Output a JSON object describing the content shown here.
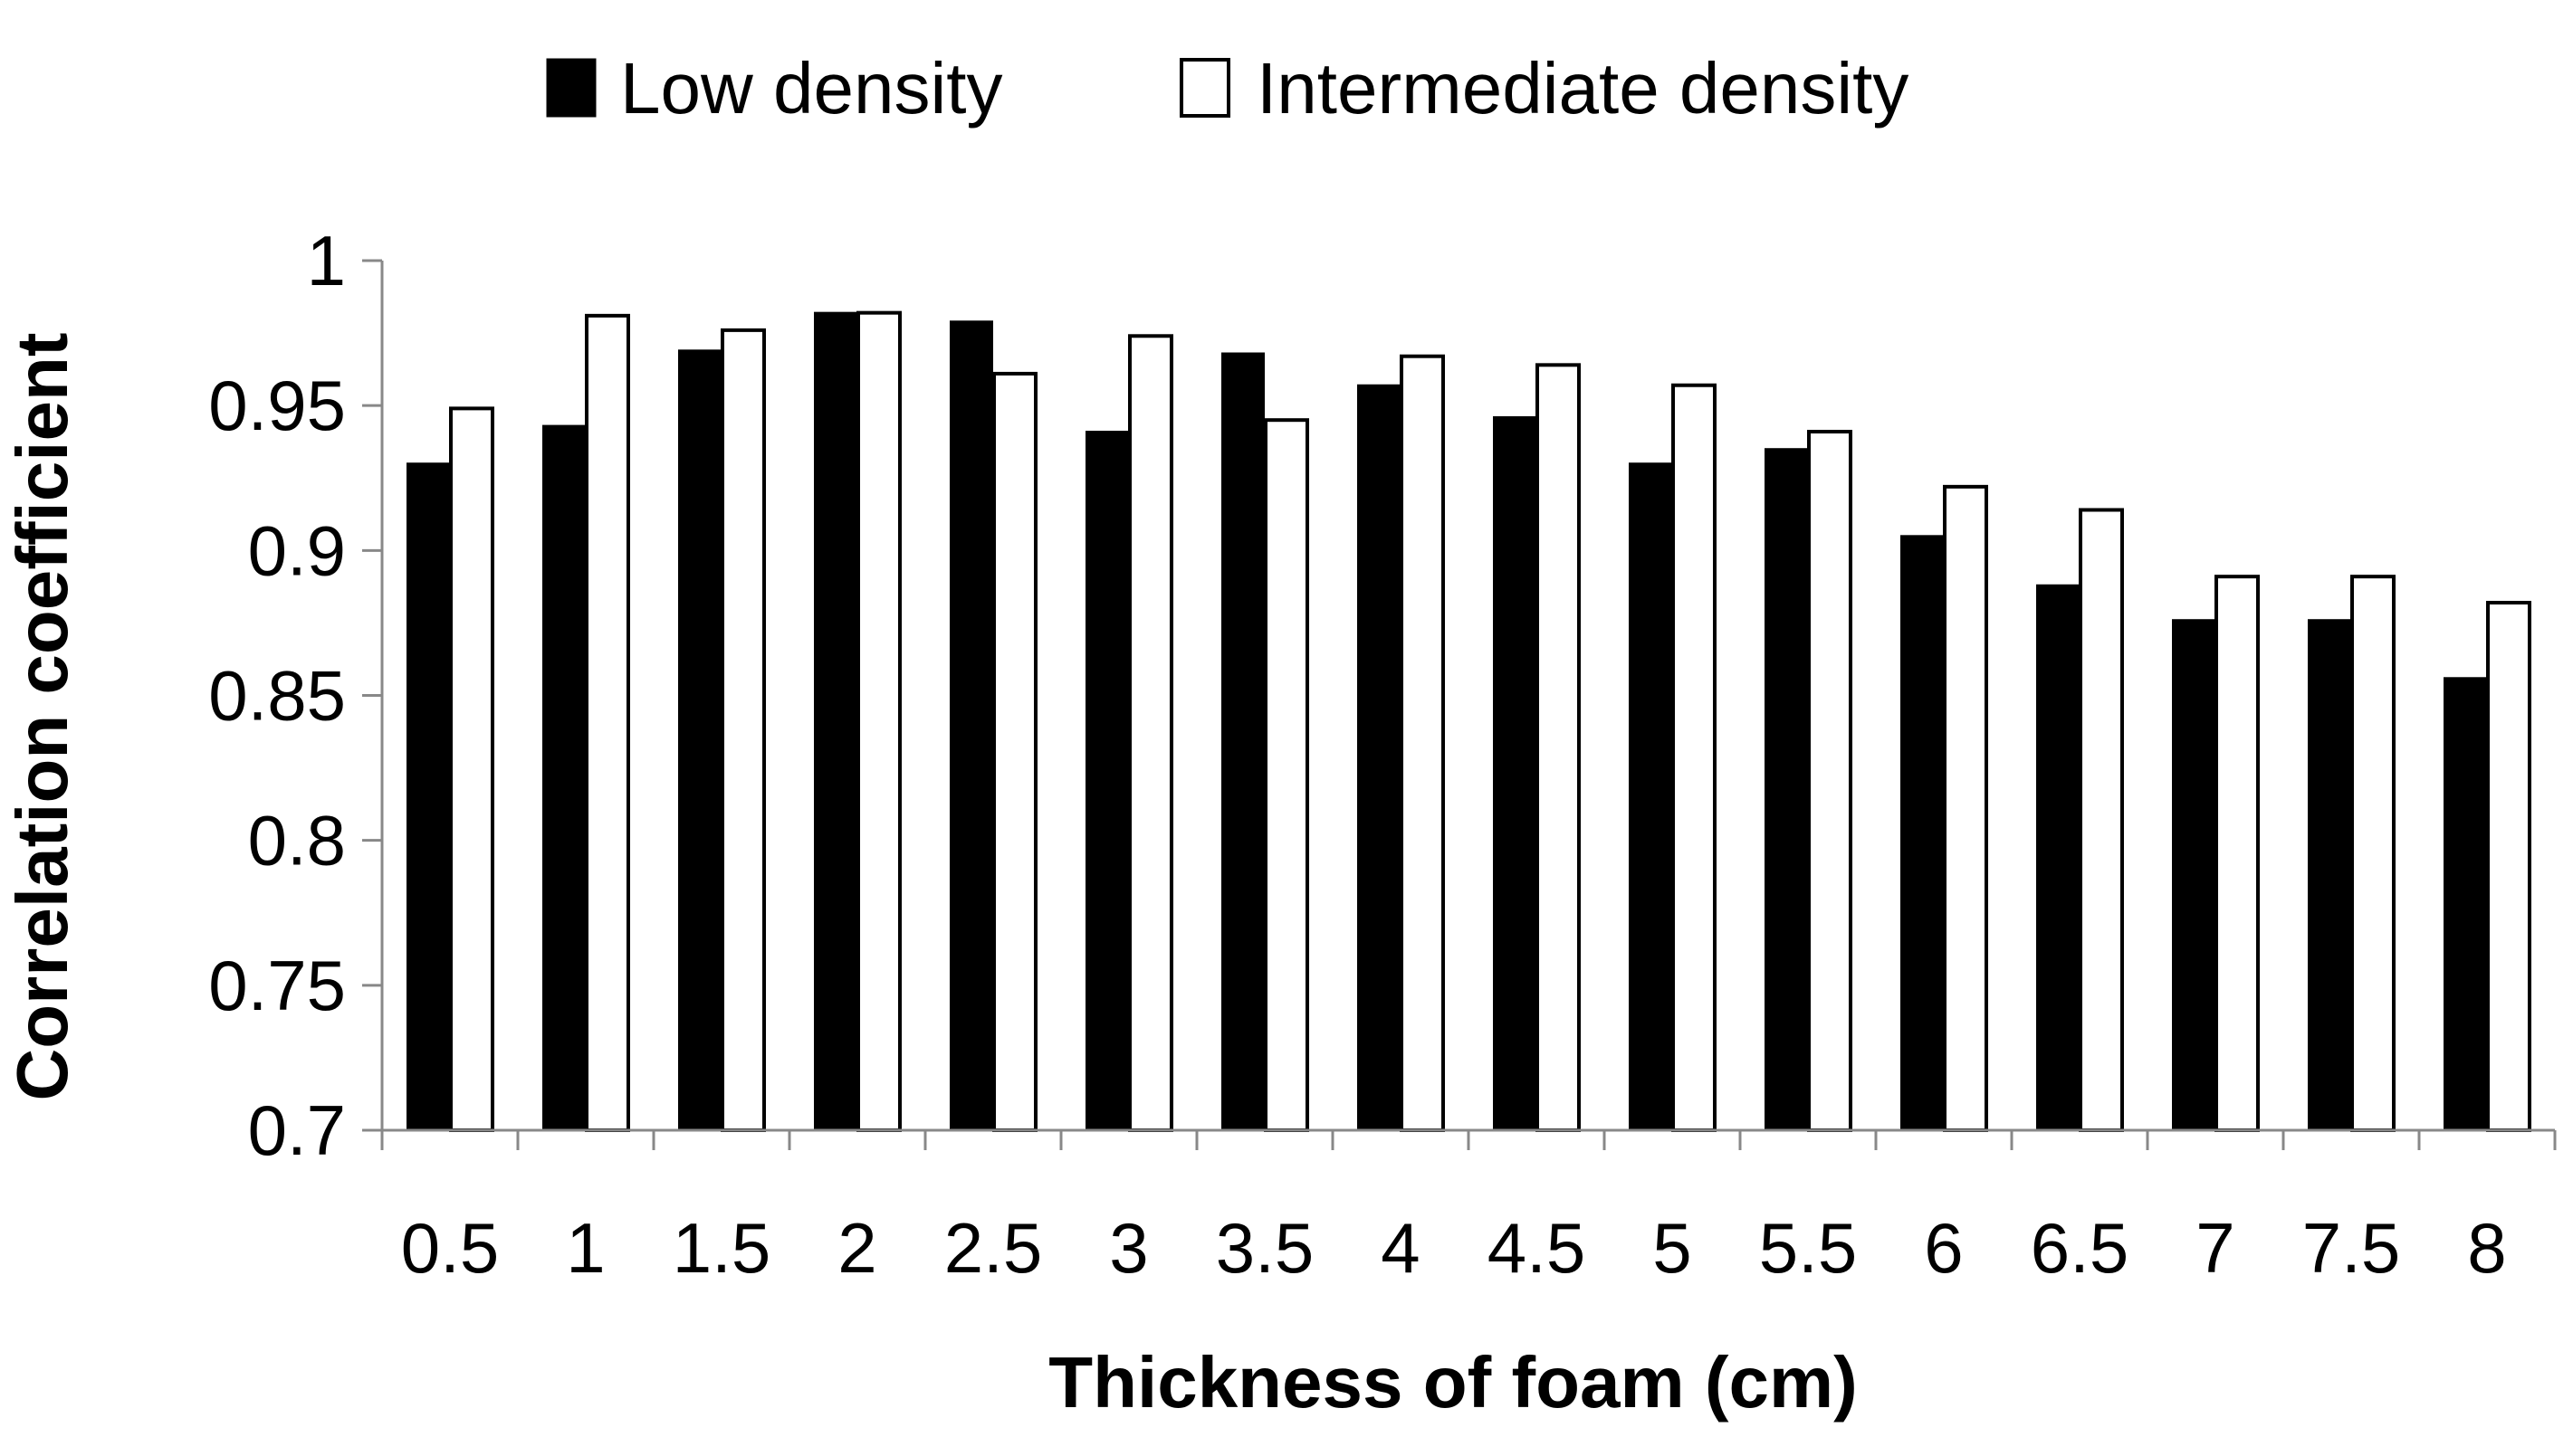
{
  "chart_data": {
    "type": "bar",
    "categories": [
      "0.5",
      "1",
      "1.5",
      "2",
      "2.5",
      "3",
      "3.5",
      "4",
      "4.5",
      "5",
      "5.5",
      "6",
      "6.5",
      "7",
      "7.5",
      "8"
    ],
    "series": [
      {
        "name": "Low density",
        "color": "#000000",
        "values": [
          0.93,
          0.943,
          0.969,
          0.982,
          0.979,
          0.941,
          0.968,
          0.957,
          0.946,
          0.93,
          0.935,
          0.905,
          0.888,
          0.876,
          0.876,
          0.856
        ]
      },
      {
        "name": "Intermediate density",
        "color": "#ffffff",
        "values": [
          0.949,
          0.981,
          0.976,
          0.982,
          0.961,
          0.974,
          0.945,
          0.967,
          0.964,
          0.957,
          0.941,
          0.922,
          0.914,
          0.891,
          0.891,
          0.882
        ]
      }
    ],
    "xlabel": "Thickness of foam (cm)",
    "ylabel": "Correlation coefficient",
    "ylim": [
      0.7,
      1.0
    ],
    "yticks": [
      "0.7",
      "0.75",
      "0.8",
      "0.85",
      "0.9",
      "0.95",
      "1"
    ],
    "grid": false,
    "legend_position": "top"
  }
}
